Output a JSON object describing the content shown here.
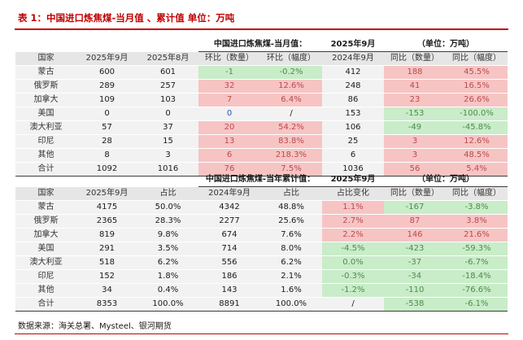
{
  "header": {
    "title": "表 1：中国进口炼焦煤-当月值 、累计值        单位：万吨",
    "source": "数据来源：海关总署、Mysteel、银河期货"
  },
  "colors": {
    "accent": "#c00000",
    "positive": "#f7c4c4",
    "negative": "#c9ecc9"
  },
  "table1": {
    "caption": {
      "title": "中国进口炼焦煤-当月值：",
      "month": "2025年9月",
      "unit": "（单位：万吨）"
    },
    "columns": [
      "国家",
      "2025年9月",
      "2025年8月",
      "环比（数量）",
      "环比（幅度）",
      "2024年9月",
      "同比（数量）",
      "同比（幅度）"
    ],
    "rows": [
      [
        "蒙古",
        "600",
        "601",
        "-1",
        "-0.2%",
        "412",
        "188",
        "45.5%"
      ],
      [
        "俄罗斯",
        "289",
        "257",
        "32",
        "12.6%",
        "248",
        "41",
        "16.5%"
      ],
      [
        "加拿大",
        "109",
        "103",
        "7",
        "6.4%",
        "86",
        "23",
        "26.6%"
      ],
      [
        "美国",
        "0",
        "0",
        "0",
        "/",
        "153",
        "-153",
        "-100.0%"
      ],
      [
        "澳大利亚",
        "57",
        "37",
        "20",
        "54.2%",
        "106",
        "-49",
        "-45.8%"
      ],
      [
        "印尼",
        "28",
        "15",
        "13",
        "83.8%",
        "25",
        "3",
        "12.6%"
      ],
      [
        "其他",
        "8",
        "3",
        "6",
        "218.3%",
        "6",
        "3",
        "48.5%"
      ],
      [
        "合计",
        "1092",
        "1016",
        "76",
        "7.5%",
        "1036",
        "56",
        "5.4%"
      ]
    ],
    "cell_colors": [
      [
        "",
        "",
        "",
        "green",
        "green",
        "",
        "red",
        "red"
      ],
      [
        "",
        "",
        "",
        "red",
        "red",
        "",
        "red",
        "red"
      ],
      [
        "",
        "",
        "",
        "red",
        "red",
        "",
        "red",
        "red"
      ],
      [
        "",
        "",
        "",
        "blue",
        "",
        "",
        "green",
        "green"
      ],
      [
        "",
        "",
        "",
        "red",
        "red",
        "",
        "green",
        "green"
      ],
      [
        "",
        "",
        "",
        "red",
        "red",
        "",
        "red",
        "red"
      ],
      [
        "",
        "",
        "",
        "red",
        "red",
        "",
        "red",
        "red"
      ],
      [
        "",
        "",
        "",
        "red",
        "red",
        "",
        "red",
        "red"
      ]
    ]
  },
  "table2": {
    "caption": {
      "title": "中国进口炼焦煤-当年累计值：",
      "month": "2025年9月",
      "unit": "（单位：万吨）"
    },
    "columns": [
      "国家",
      "2025年9月",
      "占比",
      "2024年9月",
      "占比",
      "占比变化",
      "同比（数量）",
      "同比（幅度）"
    ],
    "rows": [
      [
        "蒙古",
        "4175",
        "50.0%",
        "4342",
        "48.8%",
        "1.1%",
        "-167",
        "-3.8%"
      ],
      [
        "俄罗斯",
        "2365",
        "28.3%",
        "2277",
        "25.6%",
        "2.7%",
        "87",
        "3.8%"
      ],
      [
        "加拿大",
        "819",
        "9.8%",
        "674",
        "7.6%",
        "2.2%",
        "146",
        "21.6%"
      ],
      [
        "美国",
        "291",
        "3.5%",
        "714",
        "8.0%",
        "-4.5%",
        "-423",
        "-59.3%"
      ],
      [
        "澳大利亚",
        "518",
        "6.2%",
        "556",
        "6.2%",
        "0.0%",
        "-37",
        "-6.7%"
      ],
      [
        "印尼",
        "152",
        "1.8%",
        "186",
        "2.1%",
        "-0.3%",
        "-34",
        "-18.4%"
      ],
      [
        "其他",
        "34",
        "0.4%",
        "143",
        "1.6%",
        "-1.2%",
        "-110",
        "-76.6%"
      ],
      [
        "合计",
        "8353",
        "100.0%",
        "8891",
        "100.0%",
        "/",
        "-538",
        "-6.1%"
      ]
    ],
    "cell_colors": [
      [
        "",
        "",
        "",
        "",
        "",
        "red",
        "green",
        "green"
      ],
      [
        "",
        "",
        "",
        "",
        "",
        "red",
        "red",
        "red"
      ],
      [
        "",
        "",
        "",
        "",
        "",
        "red",
        "red",
        "red"
      ],
      [
        "",
        "",
        "",
        "",
        "",
        "green",
        "green",
        "green"
      ],
      [
        "",
        "",
        "",
        "",
        "",
        "green",
        "green",
        "green"
      ],
      [
        "",
        "",
        "",
        "",
        "",
        "green",
        "green",
        "green"
      ],
      [
        "",
        "",
        "",
        "",
        "",
        "green",
        "green",
        "green"
      ],
      [
        "",
        "",
        "",
        "",
        "",
        "",
        "green",
        "green"
      ]
    ]
  }
}
